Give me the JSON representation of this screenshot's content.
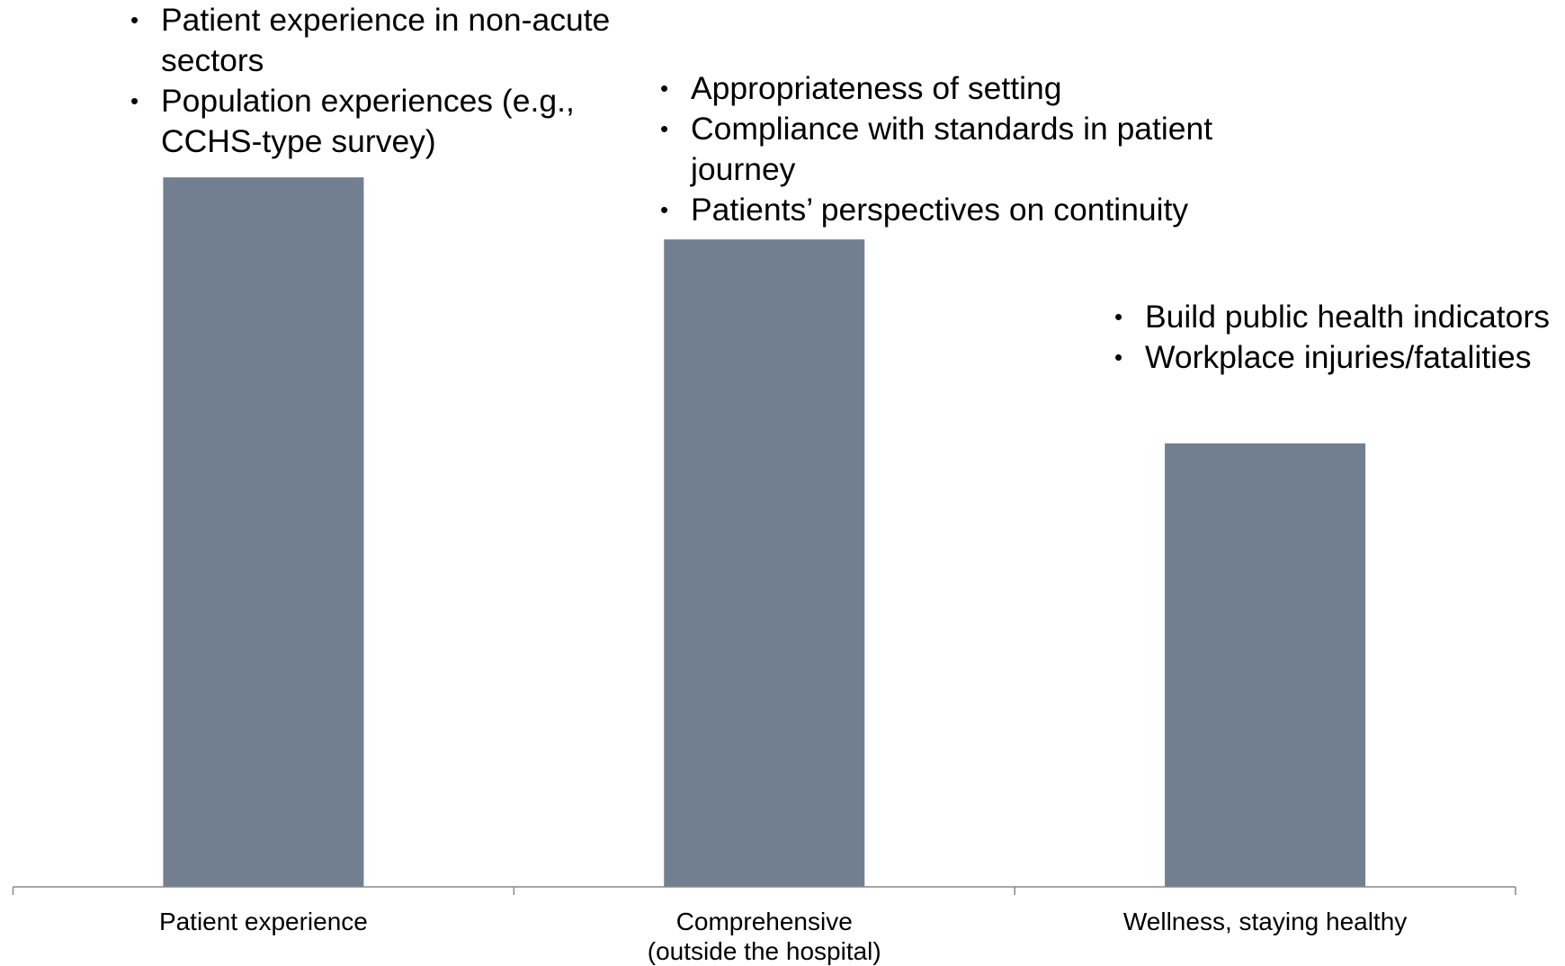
{
  "chart_data": {
    "type": "bar",
    "categories": [
      "Patient experience",
      "Comprehensive\n(outside the hospital)",
      "Wellness, staying healthy"
    ],
    "values": [
      80,
      73,
      50
    ],
    "color": "#717f90",
    "ylim": [
      0,
      100
    ],
    "annotations": [
      [
        "Patient experience in non-acute sectors",
        "Population experiences (e.g., CCHS-type survey)"
      ],
      [
        "Appropriateness of setting",
        "Compliance with standards in patient journey",
        "Patients’ perspectives on continuity"
      ],
      [
        "Build public health indicators",
        "Workplace injuries/fatalities"
      ]
    ]
  }
}
